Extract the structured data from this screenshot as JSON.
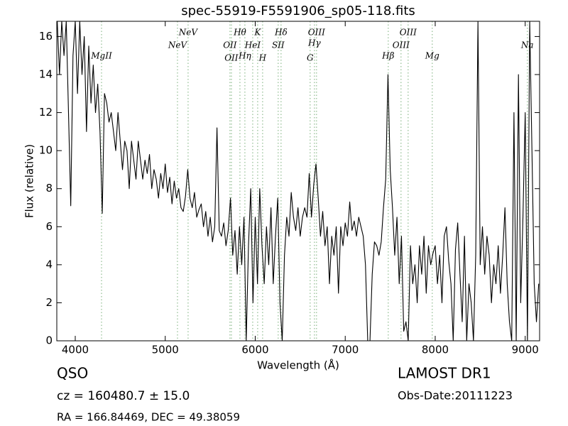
{
  "chart_data": {
    "type": "line",
    "title": "spec-55919-F5591906_sp05-118.fits",
    "xlabel": "Wavelength (Å)",
    "ylabel": "Flux (relative)",
    "color": "#000000",
    "line_color": "#8fbc8f",
    "xlim": [
      3795,
      9160
    ],
    "ylim": [
      0,
      16.8
    ],
    "xticks": [
      4000,
      5000,
      6000,
      7000,
      8000,
      9000
    ],
    "yticks": [
      0,
      2,
      4,
      6,
      8,
      10,
      12,
      14,
      16
    ],
    "x": [
      3800,
      3825,
      3850,
      3875,
      3900,
      3925,
      3950,
      3975,
      4000,
      4025,
      4050,
      4075,
      4100,
      4125,
      4150,
      4175,
      4200,
      4225,
      4250,
      4275,
      4300,
      4325,
      4350,
      4375,
      4400,
      4425,
      4450,
      4475,
      4500,
      4525,
      4550,
      4575,
      4600,
      4625,
      4650,
      4675,
      4700,
      4725,
      4750,
      4775,
      4800,
      4825,
      4850,
      4875,
      4900,
      4925,
      4950,
      4975,
      5000,
      5025,
      5050,
      5075,
      5100,
      5125,
      5150,
      5175,
      5200,
      5225,
      5250,
      5275,
      5300,
      5325,
      5350,
      5375,
      5400,
      5425,
      5450,
      5475,
      5500,
      5525,
      5550,
      5575,
      5600,
      5625,
      5650,
      5675,
      5700,
      5725,
      5750,
      5775,
      5800,
      5825,
      5850,
      5875,
      5900,
      5925,
      5950,
      5975,
      6000,
      6025,
      6050,
      6075,
      6100,
      6125,
      6150,
      6175,
      6200,
      6225,
      6250,
      6275,
      6300,
      6325,
      6350,
      6375,
      6400,
      6425,
      6450,
      6475,
      6500,
      6525,
      6550,
      6575,
      6600,
      6625,
      6650,
      6675,
      6700,
      6725,
      6750,
      6775,
      6800,
      6825,
      6850,
      6875,
      6900,
      6925,
      6950,
      6975,
      7000,
      7025,
      7050,
      7075,
      7100,
      7125,
      7150,
      7175,
      7200,
      7225,
      7250,
      7275,
      7300,
      7325,
      7350,
      7375,
      7400,
      7425,
      7450,
      7475,
      7500,
      7525,
      7550,
      7575,
      7600,
      7625,
      7650,
      7675,
      7700,
      7725,
      7750,
      7775,
      7800,
      7825,
      7850,
      7875,
      7900,
      7925,
      7950,
      7975,
      8000,
      8025,
      8050,
      8075,
      8100,
      8125,
      8150,
      8175,
      8200,
      8225,
      8250,
      8275,
      8300,
      8325,
      8350,
      8375,
      8400,
      8425,
      8450,
      8475,
      8500,
      8525,
      8550,
      8575,
      8600,
      8625,
      8650,
      8675,
      8700,
      8725,
      8750,
      8775,
      8800,
      8825,
      8850,
      8875,
      8900,
      8925,
      8950,
      8975,
      9000,
      9025,
      9050,
      9075,
      9100,
      9125,
      9150
    ],
    "values": [
      16.8,
      14,
      16.8,
      15,
      16.8,
      12,
      7.1,
      15,
      16.8,
      13,
      16.8,
      14,
      16,
      11,
      15.5,
      12.5,
      14.5,
      12,
      13.5,
      11,
      6.7,
      13,
      12.5,
      11.5,
      12,
      11,
      10,
      12,
      10.5,
      9,
      10.5,
      10,
      8,
      10.5,
      9.5,
      8.5,
      10.5,
      9.5,
      8.5,
      9.5,
      8.8,
      9.8,
      8,
      9,
      8.5,
      7.5,
      8.8,
      8,
      9.3,
      7.8,
      8.6,
      7.2,
      8.4,
      7.5,
      8,
      7,
      6.8,
      7.6,
      9,
      7.5,
      7,
      7.8,
      6.5,
      6.9,
      7.2,
      6,
      6.8,
      5.5,
      6.5,
      5.2,
      6,
      11.2,
      5.8,
      5.5,
      6.2,
      5,
      5.8,
      7.5,
      4.5,
      5.8,
      3.5,
      6,
      4,
      6.5,
      0,
      5,
      8,
      2,
      6.5,
      3,
      8,
      5,
      3,
      6,
      4,
      7,
      3,
      5.5,
      7.5,
      2,
      0,
      4.5,
      6.5,
      5.5,
      7.8,
      6.5,
      5.8,
      7,
      5.5,
      6.5,
      7,
      6.5,
      8.8,
      6.5,
      8.2,
      9.3,
      7.5,
      5.5,
      6.8,
      5,
      6,
      3,
      5.5,
      4.5,
      6,
      2.5,
      6,
      5,
      6.2,
      5.5,
      7.3,
      5.8,
      6.3,
      5.5,
      6.5,
      6,
      5.5,
      4,
      0,
      0,
      3.5,
      5.2,
      5,
      4.5,
      5.2,
      7,
      8.5,
      14,
      9,
      7,
      4.5,
      6.5,
      3,
      5.5,
      0.5,
      1,
      0,
      5,
      3,
      4,
      2,
      5,
      3.5,
      5.5,
      2.5,
      5,
      4,
      4.6,
      5,
      3,
      4.5,
      2,
      5.5,
      6,
      4.2,
      3,
      0,
      4.8,
      6.2,
      3.5,
      1,
      5.5,
      0,
      3,
      2,
      0,
      4.5,
      16.8,
      4,
      6,
      3.5,
      5.5,
      4.5,
      2,
      4,
      3,
      5,
      2.5,
      4.5,
      7,
      3,
      1,
      0,
      12,
      0,
      14,
      2,
      6.5,
      12,
      0,
      16.8,
      10,
      3,
      1,
      3
    ],
    "lines": [
      {
        "label": "MgII",
        "x": 4292
      },
      {
        "label": "NeV",
        "x": 5136
      },
      {
        "label": "NeV",
        "x": 5254
      },
      {
        "label": "OII",
        "x": 5719
      },
      {
        "label": "OII",
        "x": 5735
      },
      {
        "label": "Hθ",
        "x": 5830
      },
      {
        "label": "Hη",
        "x": 5885
      },
      {
        "label": "HeI",
        "x": 5972
      },
      {
        "label": "K",
        "x": 6027
      },
      {
        "label": "H",
        "x": 6082
      },
      {
        "label": "SII",
        "x": 6255
      },
      {
        "label": "Hδ",
        "x": 6287
      },
      {
        "label": "G",
        "x": 6610
      },
      {
        "label": "Hγ",
        "x": 6658
      },
      {
        "label": "OIII",
        "x": 6681
      },
      {
        "label": "Hβ",
        "x": 7478
      },
      {
        "label": "OIII",
        "x": 7620
      },
      {
        "label": "OIII",
        "x": 7699
      },
      {
        "label": "Mg",
        "x": 7967
      },
      {
        "label": "Na",
        "x": 9024
      }
    ],
    "annotations": {
      "class": "QSO",
      "cz": "cz = 160480.7 ± 15.0",
      "coords": "RA = 166.84469, DEC = 49.38059",
      "survey": "LAMOST DR1",
      "obs_date": "Obs-Date:20111223"
    }
  }
}
